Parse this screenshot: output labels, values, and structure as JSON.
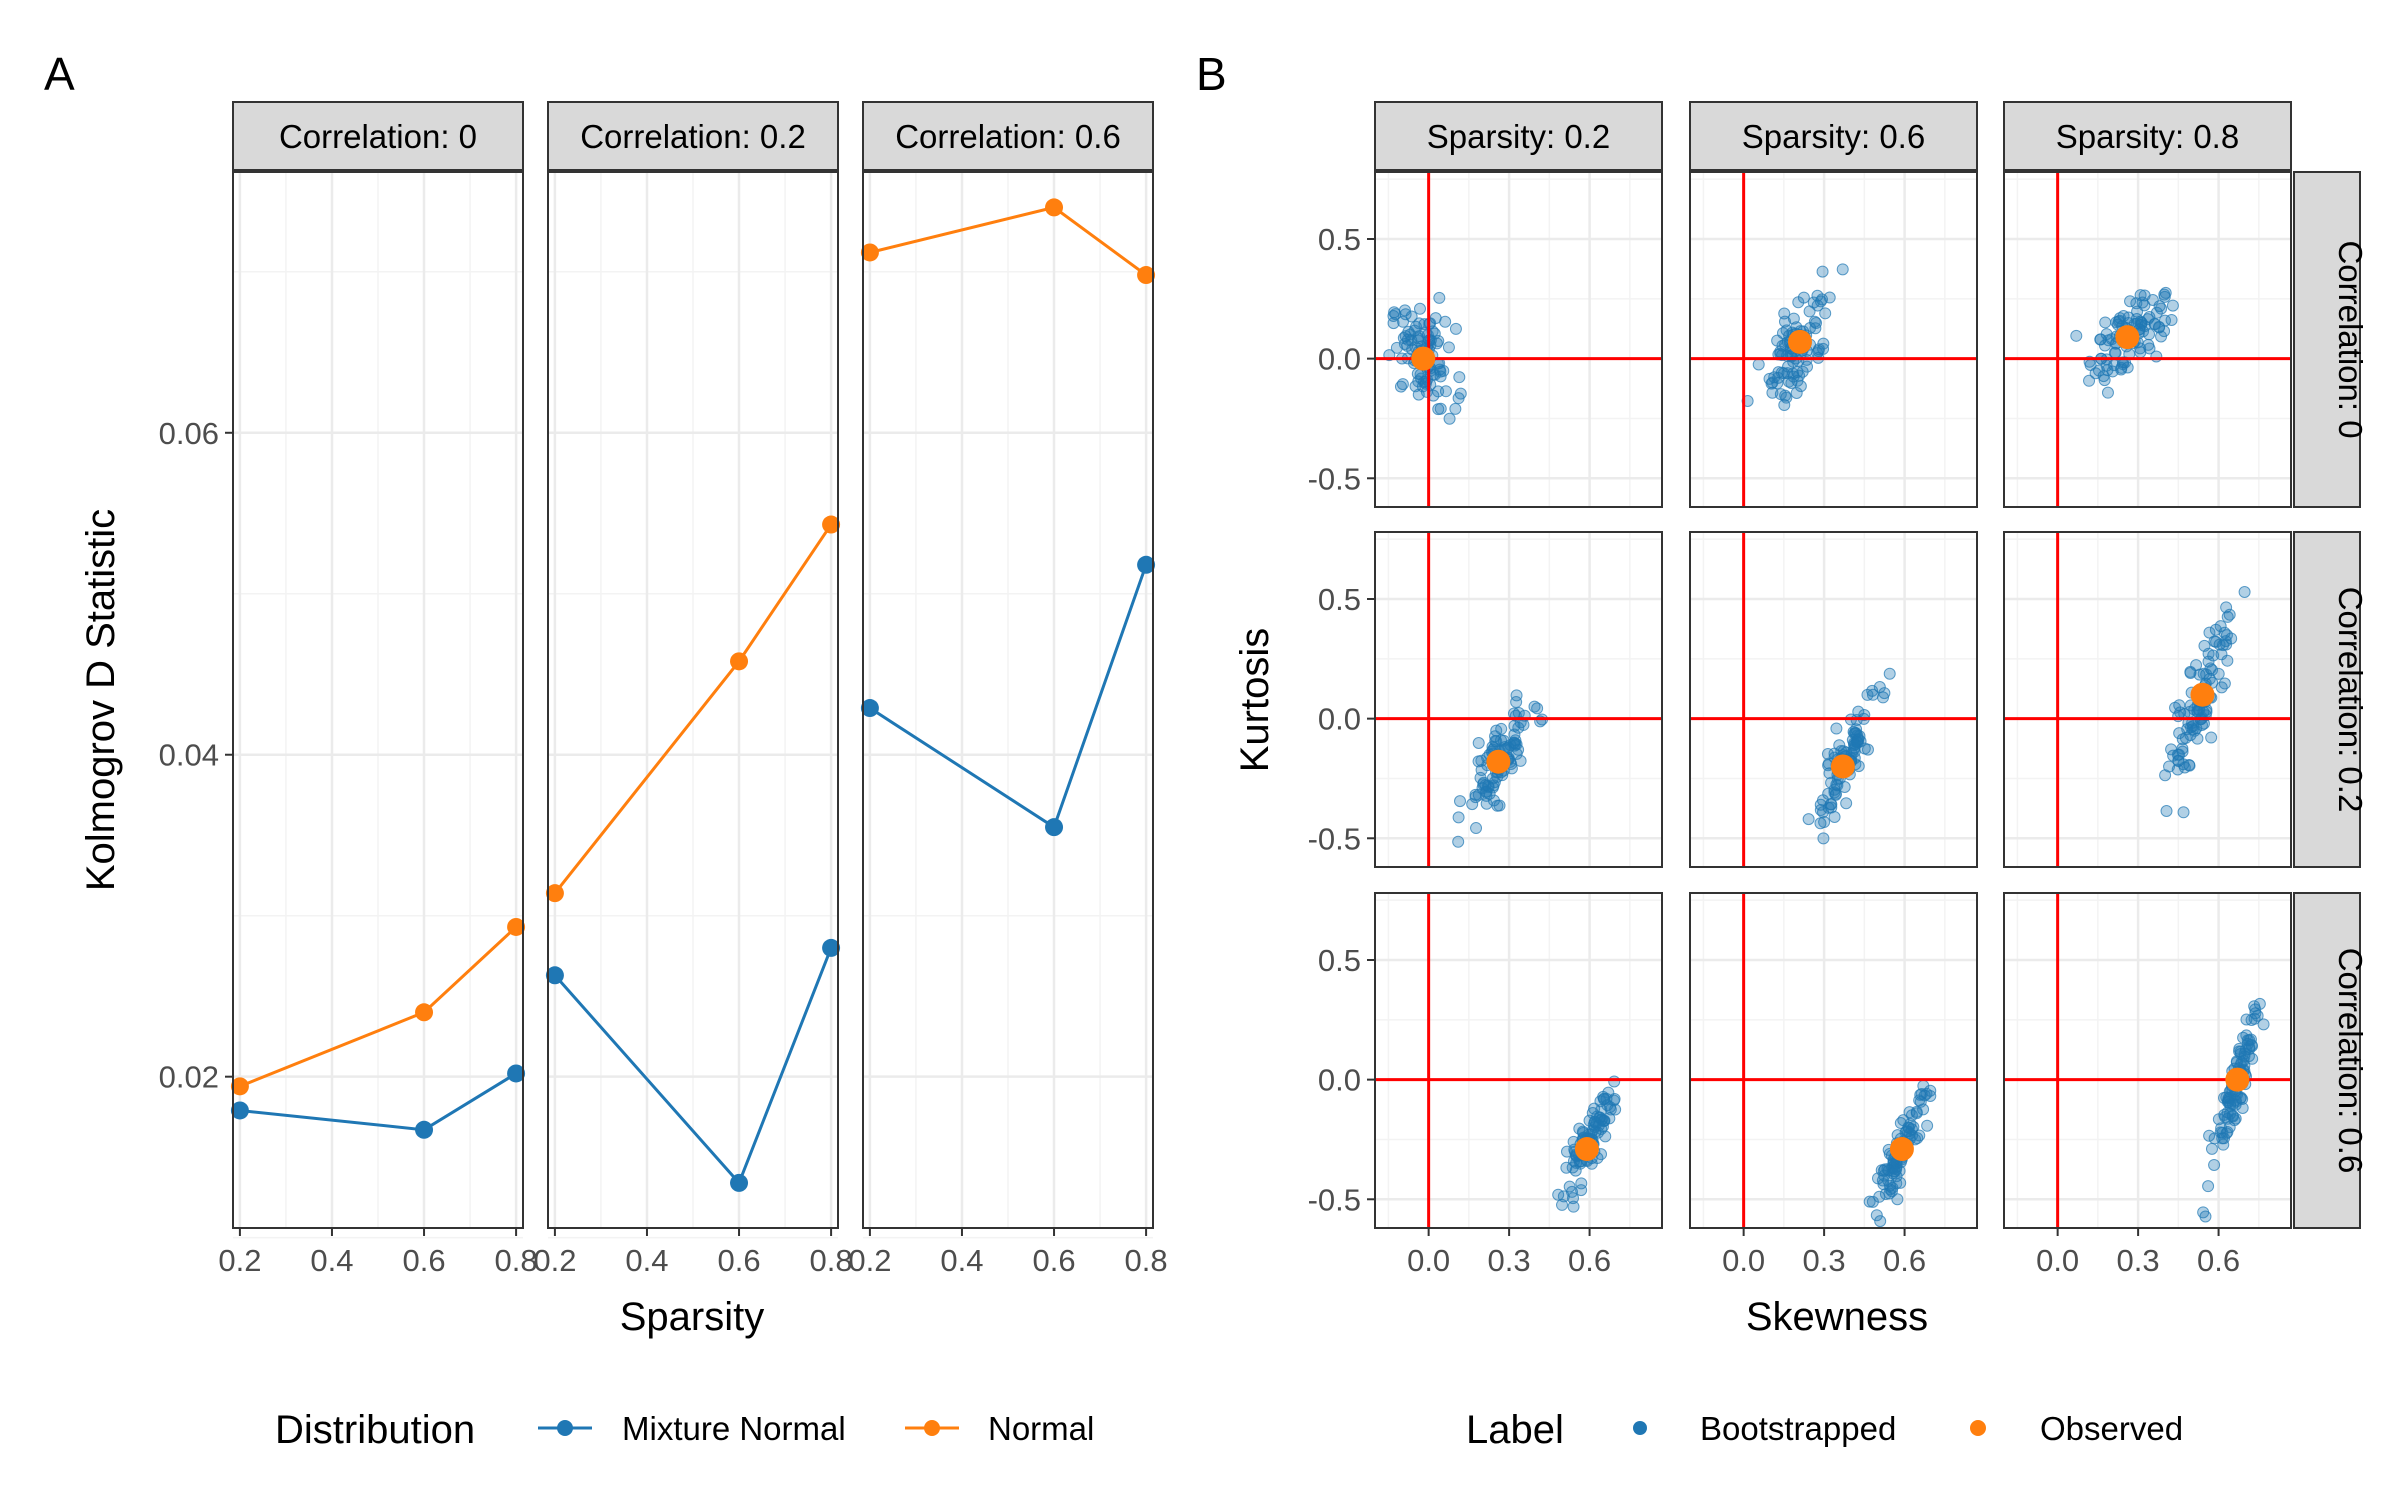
{
  "panels": {
    "a_label": "A",
    "b_label": "B"
  },
  "chart_data": [
    {
      "type": "line",
      "panel": "A",
      "xlabel": "Sparsity",
      "ylabel": "Kolmogrov D Statistic",
      "x": [
        0.2,
        0.6,
        0.8
      ],
      "xlim": [
        0.185,
        0.815
      ],
      "ylim": [
        0.0106,
        0.0762
      ],
      "x_ticks": [
        0.2,
        0.4,
        0.6,
        0.8
      ],
      "x_tick_labels": [
        "0.2",
        "0.4",
        "0.6",
        "0.8"
      ],
      "y_ticks": [
        0.02,
        0.04,
        0.06
      ],
      "y_tick_labels": [
        "0.02",
        "0.04",
        "0.06"
      ],
      "grid": true,
      "facet_labels": [
        "Correlation: 0",
        "Correlation: 0.2",
        "Correlation: 0.6"
      ],
      "legend": {
        "title": "Distribution",
        "position": "bottom",
        "entries": [
          {
            "label": "Mixture Normal",
            "color": "#1f77b4"
          },
          {
            "label": "Normal",
            "color": "#ff7f0e"
          }
        ]
      },
      "facets": [
        {
          "label": "Correlation: 0",
          "series": [
            {
              "name": "Mixture Normal",
              "color": "#1f77b4",
              "values": [
                0.0179,
                0.0167,
                0.0202
              ]
            },
            {
              "name": "Normal",
              "color": "#ff7f0e",
              "values": [
                0.0194,
                0.024,
                0.0293
              ]
            }
          ]
        },
        {
          "label": "Correlation: 0.2",
          "series": [
            {
              "name": "Mixture Normal",
              "color": "#1f77b4",
              "values": [
                0.0263,
                0.0134,
                0.028
              ]
            },
            {
              "name": "Normal",
              "color": "#ff7f0e",
              "values": [
                0.0314,
                0.0458,
                0.0543
              ]
            }
          ]
        },
        {
          "label": "Correlation: 0.6",
          "series": [
            {
              "name": "Mixture Normal",
              "color": "#1f77b4",
              "values": [
                0.0429,
                0.0355,
                0.0518
              ]
            },
            {
              "name": "Normal",
              "color": "#ff7f0e",
              "values": [
                0.0712,
                0.074,
                0.0698
              ]
            }
          ]
        }
      ]
    },
    {
      "type": "scatter",
      "panel": "B",
      "xlabel": "Skewness",
      "ylabel": "Kurtosis",
      "xlim": [
        -0.2,
        0.87
      ],
      "ylim": [
        -0.62,
        0.78
      ],
      "x_ticks": [
        0.0,
        0.3,
        0.6
      ],
      "x_tick_labels": [
        "0.0",
        "0.3",
        "0.6"
      ],
      "y_ticks": [
        -0.5,
        0.0,
        0.5
      ],
      "y_tick_labels": [
        "-0.5",
        "0.0",
        "0.5"
      ],
      "grid": true,
      "reference_lines": {
        "x": 0,
        "y": 0,
        "color": "#ff0000"
      },
      "column_labels": [
        "Sparsity: 0.2",
        "Sparsity: 0.6",
        "Sparsity: 0.8"
      ],
      "row_labels": [
        "Correlation: 0",
        "Correlation: 0.2",
        "Correlation: 0.6"
      ],
      "bootstrap_samples_per_cell": 100,
      "legend": {
        "title": "Label",
        "position": "bottom",
        "entries": [
          {
            "label": "Bootstrapped",
            "color": "#1f77b4"
          },
          {
            "label": "Observed",
            "color": "#ff7f0e"
          }
        ]
      },
      "cells": [
        {
          "row": "Correlation: 0",
          "col": "Sparsity: 0.2",
          "observed": [
            -0.02,
            0.0
          ],
          "bootstrap_center": [
            -0.02,
            0.0
          ],
          "bootstrap_spread": [
            0.06,
            0.1
          ],
          "bootstrap_correlation": -0.3
        },
        {
          "row": "Correlation: 0",
          "col": "Sparsity: 0.6",
          "observed": [
            0.21,
            0.07
          ],
          "bootstrap_center": [
            0.21,
            0.07
          ],
          "bootstrap_spread": [
            0.06,
            0.12
          ],
          "bootstrap_correlation": 0.6
        },
        {
          "row": "Correlation: 0",
          "col": "Sparsity: 0.8",
          "observed": [
            0.26,
            0.09
          ],
          "bootstrap_center": [
            0.26,
            0.09
          ],
          "bootstrap_spread": [
            0.07,
            0.09
          ],
          "bootstrap_correlation": 0.5
        },
        {
          "row": "Correlation: 0.2",
          "col": "Sparsity: 0.2",
          "observed": [
            0.26,
            -0.18
          ],
          "bootstrap_center": [
            0.26,
            -0.18
          ],
          "bootstrap_spread": [
            0.06,
            0.12
          ],
          "bootstrap_correlation": 0.8
        },
        {
          "row": "Correlation: 0.2",
          "col": "Sparsity: 0.6",
          "observed": [
            0.37,
            -0.2
          ],
          "bootstrap_center": [
            0.37,
            -0.2
          ],
          "bootstrap_spread": [
            0.06,
            0.13
          ],
          "bootstrap_correlation": 0.85
        },
        {
          "row": "Correlation: 0.2",
          "col": "Sparsity: 0.8",
          "observed": [
            0.54,
            0.1
          ],
          "bootstrap_center": [
            0.54,
            0.1
          ],
          "bootstrap_spread": [
            0.06,
            0.19
          ],
          "bootstrap_correlation": 0.85
        },
        {
          "row": "Correlation: 0.6",
          "col": "Sparsity: 0.2",
          "observed": [
            0.59,
            -0.29
          ],
          "bootstrap_center": [
            0.59,
            -0.29
          ],
          "bootstrap_spread": [
            0.05,
            0.12
          ],
          "bootstrap_correlation": 0.9
        },
        {
          "row": "Correlation: 0.6",
          "col": "Sparsity: 0.6",
          "observed": [
            0.59,
            -0.29
          ],
          "bootstrap_center": [
            0.59,
            -0.29
          ],
          "bootstrap_spread": [
            0.05,
            0.12
          ],
          "bootstrap_correlation": 0.9
        },
        {
          "row": "Correlation: 0.6",
          "col": "Sparsity: 0.8",
          "observed": [
            0.67,
            0.0
          ],
          "bootstrap_center": [
            0.67,
            0.0
          ],
          "bootstrap_spread": [
            0.05,
            0.2
          ],
          "bootstrap_correlation": 0.93
        }
      ]
    }
  ]
}
